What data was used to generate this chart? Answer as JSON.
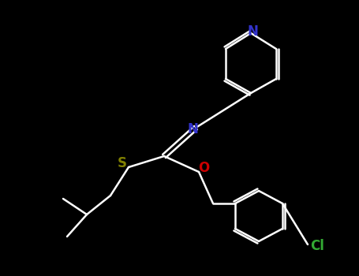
{
  "background_color": "#000000",
  "bond_color": "#ffffff",
  "colors": {
    "N": "#3333cc",
    "O": "#cc0000",
    "S": "#808000",
    "Cl": "#33aa33",
    "C": "#ffffff"
  },
  "lw": 1.8,
  "figsize": [
    4.55,
    3.5
  ],
  "dpi": 100
}
